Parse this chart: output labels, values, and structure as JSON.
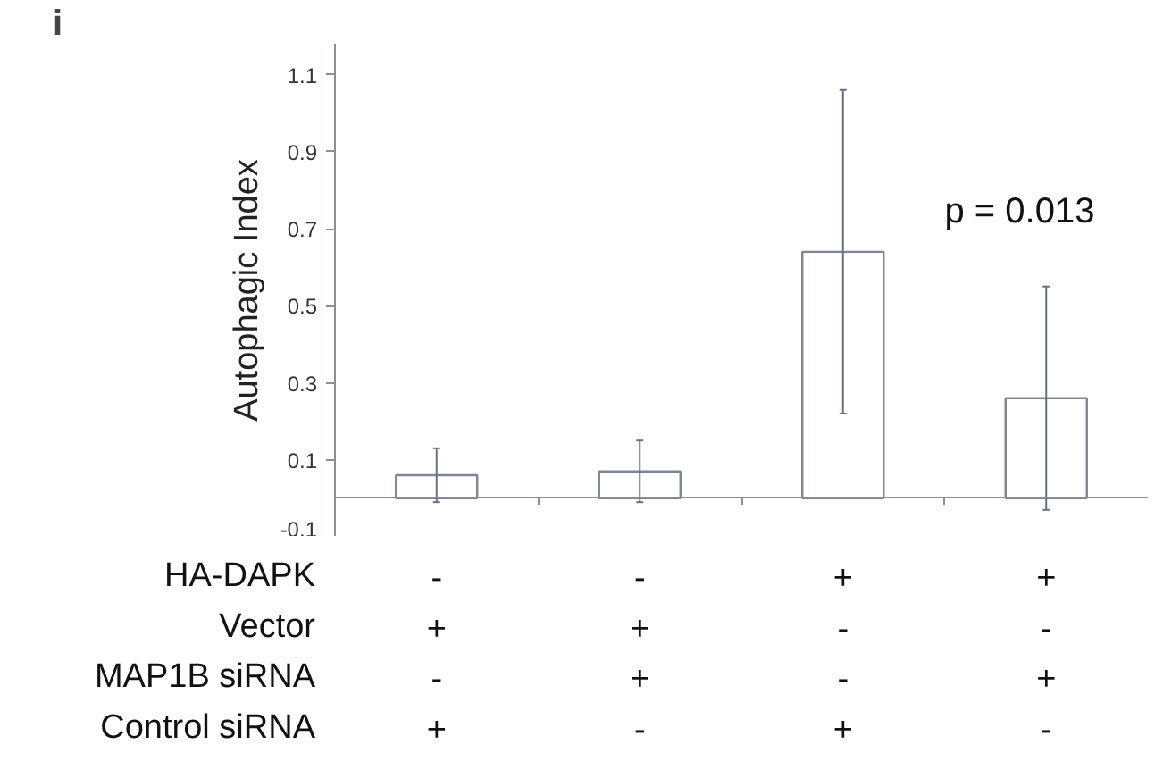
{
  "chart_data": {
    "type": "bar",
    "ylabel": "Autophagic Index",
    "categories": [
      "-\n+\n-\n+",
      "-\n+\n+\n-",
      "+\n-\n-\n+",
      "+\n-\n+\n-"
    ],
    "values": [
      0.06,
      0.07,
      0.64,
      0.26
    ],
    "errors": [
      0.07,
      0.08,
      0.42,
      0.29
    ],
    "color": "#ffffff",
    "ylim": [
      -0.1,
      1.18
    ],
    "yticks": [
      -0.1,
      0.1,
      0.3,
      0.5,
      0.7,
      0.9,
      1.1
    ],
    "tick_labels": "y",
    "grid": false,
    "annotations": [
      "i",
      "p  = 0.013",
      "HA-DAPK",
      "Vector",
      "MAP1B siRNA",
      "Control siRNA"
    ]
  }
}
